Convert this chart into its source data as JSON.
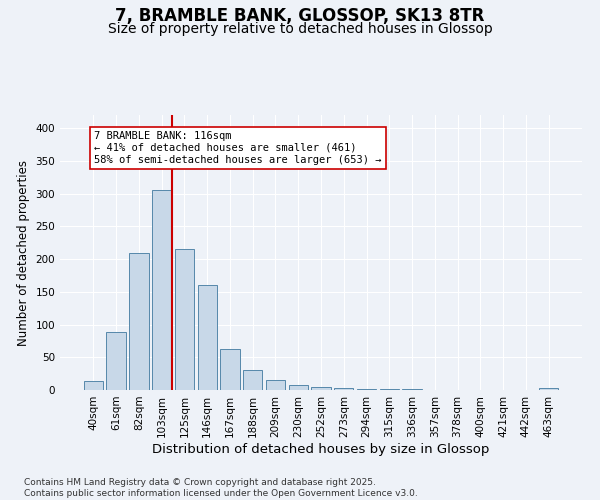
{
  "title": "7, BRAMBLE BANK, GLOSSOP, SK13 8TR",
  "subtitle": "Size of property relative to detached houses in Glossop",
  "xlabel": "Distribution of detached houses by size in Glossop",
  "ylabel": "Number of detached properties",
  "bar_labels": [
    "40sqm",
    "61sqm",
    "82sqm",
    "103sqm",
    "125sqm",
    "146sqm",
    "167sqm",
    "188sqm",
    "209sqm",
    "230sqm",
    "252sqm",
    "273sqm",
    "294sqm",
    "315sqm",
    "336sqm",
    "357sqm",
    "378sqm",
    "400sqm",
    "421sqm",
    "442sqm",
    "463sqm"
  ],
  "bar_values": [
    13,
    88,
    210,
    305,
    215,
    160,
    62,
    30,
    15,
    8,
    5,
    3,
    2,
    1,
    1,
    0,
    0,
    0,
    0,
    0,
    3
  ],
  "bar_color": "#c8d8e8",
  "bar_edge_color": "#5588aa",
  "vline_color": "#cc0000",
  "annotation_text": "7 BRAMBLE BANK: 116sqm\n← 41% of detached houses are smaller (461)\n58% of semi-detached houses are larger (653) →",
  "annotation_box_color": "#ffffff",
  "annotation_box_edge": "#cc0000",
  "ylim": [
    0,
    420
  ],
  "yticks": [
    0,
    50,
    100,
    150,
    200,
    250,
    300,
    350,
    400
  ],
  "footnote": "Contains HM Land Registry data © Crown copyright and database right 2025.\nContains public sector information licensed under the Open Government Licence v3.0.",
  "background_color": "#eef2f8",
  "plot_background": "#eef2f8",
  "grid_color": "#ffffff",
  "title_fontsize": 12,
  "subtitle_fontsize": 10,
  "xlabel_fontsize": 9.5,
  "ylabel_fontsize": 8.5,
  "tick_fontsize": 7.5,
  "footnote_fontsize": 6.5
}
